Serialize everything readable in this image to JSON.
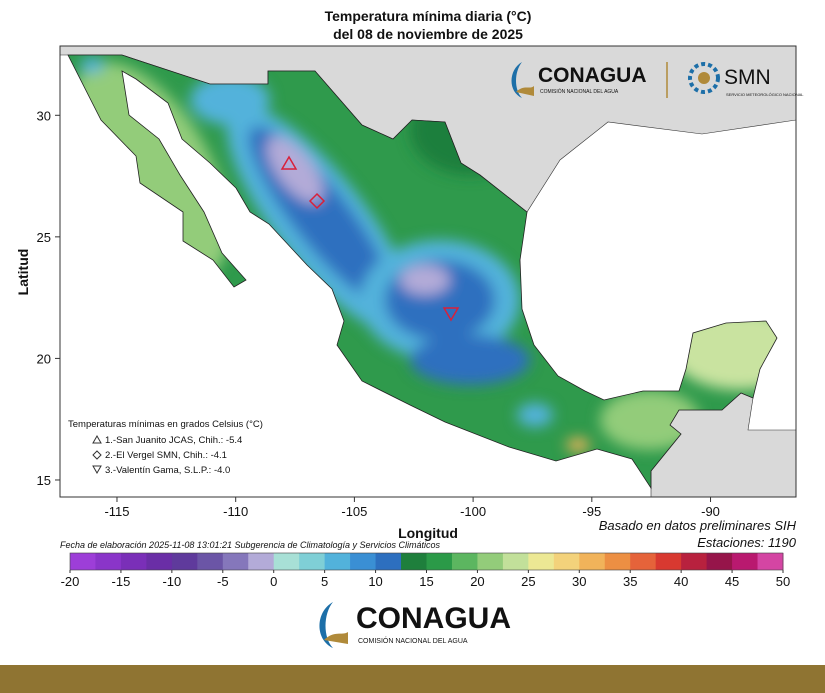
{
  "header": {
    "title": "Temperatura mínima diaria (°C)",
    "subtitle": "del 08 de noviembre de 2025"
  },
  "logos": {
    "conagua": "CONAGUA",
    "conagua_sub": "COMISIÓN NACIONAL DEL AGUA",
    "smn": "SMN",
    "smn_sub": "SERVICIO METEOROLÓGICO NACIONAL"
  },
  "map": {
    "xlabel": "Longitud",
    "ylabel": "Latitud",
    "xlim": [
      -117.4,
      -86.4
    ],
    "ylim": [
      14.3,
      32.85
    ],
    "xticks": [
      -115,
      -110,
      -105,
      -100,
      -95,
      -90
    ],
    "yticks": [
      15,
      20,
      25,
      30
    ]
  },
  "legend": {
    "title": "Temperaturas mínimas en grados Celsius (°C)",
    "items": [
      "1.-San Juanito JCAS, Chih.: -5.4",
      "2.-El Vergel SMN, Chih.: -4.1",
      "3.-Valentín Gama, S.L.P.: -4.0"
    ]
  },
  "notes": {
    "source": "Basado en datos preliminares SIH",
    "stations": "Estaciones:  1190",
    "footer": "Fecha de elaboración 2025-11-08 13:01:21 Subgerencia de Climatología y Servicios Climáticos"
  },
  "colorbar": {
    "lim": [
      -20,
      50
    ],
    "ticks": [
      -20,
      -15,
      -10,
      -5,
      0,
      5,
      10,
      15,
      20,
      25,
      30,
      35,
      40,
      45,
      50
    ],
    "colors": [
      "#9d3ed8",
      "#8a35c9",
      "#7a2fb8",
      "#6a2ea6",
      "#5f3a9c",
      "#6b55a6",
      "#8577bb",
      "#b3abd8",
      "#a8e0d6",
      "#7fcfd6",
      "#52b2db",
      "#3a8fd4",
      "#2d6fbf",
      "#1e7f3c",
      "#2b9a48",
      "#5cb660",
      "#93cc7a",
      "#c2e09a",
      "#ece894",
      "#f3d27b",
      "#f1b35a",
      "#ec8f43",
      "#e5633a",
      "#d83930",
      "#b8213e",
      "#96154a",
      "#b9196f",
      "#d445a3"
    ]
  },
  "footer_logo": {
    "name": "CONAGUA",
    "sub": "COMISIÓN NACIONAL DEL AGUA"
  }
}
